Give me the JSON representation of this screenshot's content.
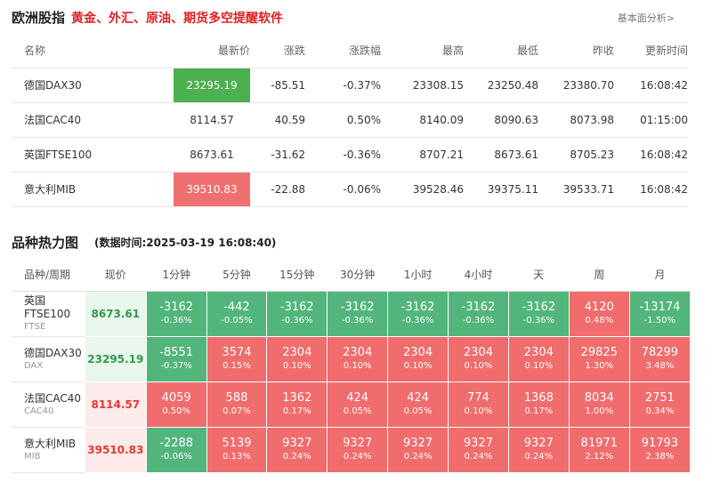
{
  "header": {
    "title": "欧洲股指",
    "slogan": "黄金、外汇、原油、期货多空提醒软件",
    "link": "基本面分析>"
  },
  "quote_table": {
    "headers": [
      "名称",
      "最新价",
      "涨跌",
      "涨跌幅",
      "最高",
      "最低",
      "昨收",
      "更新时间"
    ],
    "rows": [
      {
        "name": "德国DAX30",
        "last": "23295.19",
        "chg": "-85.51",
        "pct": "-0.37%",
        "high": "23308.15",
        "low": "23250.48",
        "prev": "23380.70",
        "time": "16:08:42"
      },
      {
        "name": "法国CAC40",
        "last": "8114.57",
        "chg": "40.59",
        "pct": "0.50%",
        "high": "8140.09",
        "low": "8090.63",
        "prev": "8073.98",
        "time": "01:15:00"
      },
      {
        "name": "英国FTSE100",
        "last": "8673.61",
        "chg": "-31.62",
        "pct": "-0.36%",
        "high": "8707.21",
        "low": "8673.61",
        "prev": "8705.23",
        "time": "16:08:42"
      },
      {
        "name": "意大利MIB",
        "last": "39510.83",
        "chg": "-22.88",
        "pct": "-0.06%",
        "high": "39528.46",
        "low": "39375.11",
        "prev": "39533.71",
        "time": "16:08:42"
      }
    ]
  },
  "heatmap": {
    "title": "品种热力图",
    "time": "(数据时间:2025-03-19 16:08:40)",
    "headers": [
      "品种/周期",
      "现价",
      "1分钟",
      "5分钟",
      "15分钟",
      "30分钟",
      "1小时",
      "4小时",
      "天",
      "周",
      "月"
    ],
    "rows": [
      {
        "name": "英国FTSE100",
        "code": "FTSE",
        "price": "8673.61",
        "cells": [
          {
            "v": "-3162",
            "p": "-0.36%"
          },
          {
            "v": "-442",
            "p": "-0.05%"
          },
          {
            "v": "-3162",
            "p": "-0.36%"
          },
          {
            "v": "-3162",
            "p": "-0.36%"
          },
          {
            "v": "-3162",
            "p": "-0.36%"
          },
          {
            "v": "-3162",
            "p": "-0.36%"
          },
          {
            "v": "-3162",
            "p": "-0.36%"
          },
          {
            "v": "4120",
            "p": "0.48%"
          },
          {
            "v": "-13174",
            "p": "-1.50%"
          }
        ]
      },
      {
        "name": "德国DAX30",
        "code": "DAX",
        "price": "23295.19",
        "cells": [
          {
            "v": "-8551",
            "p": "-0.37%"
          },
          {
            "v": "3574",
            "p": "0.15%"
          },
          {
            "v": "2304",
            "p": "0.10%"
          },
          {
            "v": "2304",
            "p": "0.10%"
          },
          {
            "v": "2304",
            "p": "0.10%"
          },
          {
            "v": "2304",
            "p": "0.10%"
          },
          {
            "v": "2304",
            "p": "0.10%"
          },
          {
            "v": "29825",
            "p": "1.30%"
          },
          {
            "v": "78299",
            "p": "3.48%"
          }
        ]
      },
      {
        "name": "法国CAC40",
        "code": "CAC40",
        "price": "8114.57",
        "cells": [
          {
            "v": "4059",
            "p": "0.50%"
          },
          {
            "v": "588",
            "p": "0.07%"
          },
          {
            "v": "1362",
            "p": "0.17%"
          },
          {
            "v": "424",
            "p": "0.05%"
          },
          {
            "v": "424",
            "p": "0.05%"
          },
          {
            "v": "774",
            "p": "0.10%"
          },
          {
            "v": "1368",
            "p": "0.17%"
          },
          {
            "v": "8034",
            "p": "1.00%"
          },
          {
            "v": "2751",
            "p": "0.34%"
          }
        ]
      },
      {
        "name": "意大利MIB",
        "code": "MIB",
        "price": "39510.83",
        "cells": [
          {
            "v": "-2288",
            "p": "-0.06%"
          },
          {
            "v": "5139",
            "p": "0.13%"
          },
          {
            "v": "9327",
            "p": "0.24%"
          },
          {
            "v": "9327",
            "p": "0.24%"
          },
          {
            "v": "9327",
            "p": "0.24%"
          },
          {
            "v": "9327",
            "p": "0.24%"
          },
          {
            "v": "9327",
            "p": "0.24%"
          },
          {
            "v": "81971",
            "p": "2.12%"
          },
          {
            "v": "91793",
            "p": "2.38%"
          }
        ]
      }
    ]
  },
  "colors": {
    "up": "#e53935",
    "down": "#43a047",
    "heat_up": "#f16c6c",
    "heat_down": "#52b57c"
  }
}
